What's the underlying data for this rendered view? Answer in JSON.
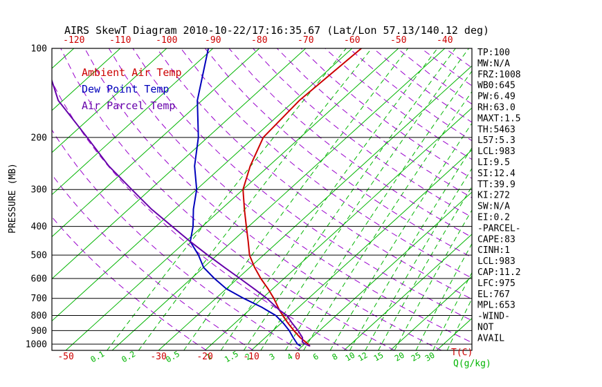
{
  "title": "AIRS SkewT Diagram 2010-10-22/17:16:35.67 (Lat/Lon 57.13/140.12 deg)",
  "colors": {
    "frame": "#000000",
    "green": "#00b400",
    "purple": "#9900cc",
    "temp_labels": "#cc0000",
    "pressure_labels": "#000000",
    "stats_text": "#000000",
    "cape_hatch": "#aa0000"
  },
  "axes": {
    "pressure_label": "PRESSURE (MB)",
    "pressure_ticks": [
      100,
      200,
      300,
      400,
      500,
      600,
      700,
      800,
      900,
      1000
    ],
    "top_temp_ticks": [
      -120,
      -110,
      -100,
      -90,
      -80,
      -70,
      -60,
      -50,
      -40
    ],
    "bottom_temp_ticks": [
      -50,
      -30,
      -20,
      -10,
      0
    ],
    "temp_unit": "T(C)",
    "mixing_ratio_unit": "Q(g/kg)",
    "mixing_ratio_ticks": [
      0.1,
      0.2,
      0.5,
      1,
      1.5,
      2,
      3,
      4,
      6,
      8,
      10,
      12,
      15,
      20,
      25,
      30
    ]
  },
  "stats_panel": {
    "lines": [
      "TP:100",
      "MW:N/A",
      "FRZ:1008",
      "WB0:645",
      "PW:6.49",
      "RH:63.0",
      "MAXT:1.5",
      "TH:5463",
      "L57:5.3",
      "LCL:983",
      "LI:9.5",
      "SI:12.4",
      "TT:39.9",
      "KI:272",
      "SW:N/A",
      "EI:0.2",
      "-PARCEL-",
      "CAPE:83",
      "CINH:1",
      "LCL:983",
      "CAP:11.2",
      "LFC:975",
      "EL:767",
      "MPL:653",
      "-WIND-",
      "NOT",
      "AVAIL"
    ]
  },
  "chart_data": {
    "type": "line",
    "title": "AIRS SkewT Diagram 2010-10-22/17:16:35.67 (Lat/Lon 57.13/140.12 deg)",
    "x_axis": "Temperature (C), skewed 45 deg",
    "y_axis": "Pressure (MB), log scale",
    "pressure_range": [
      100,
      1050
    ],
    "grid": {
      "isotherms_c": {
        "min": -160,
        "max": 40,
        "step": 10
      },
      "dry_adiabats_k": {
        "min": 250,
        "max": 470,
        "step": 10
      },
      "mixing_ratio_g_kg": [
        0.1,
        0.2,
        0.5,
        1,
        1.5,
        2,
        3,
        4,
        6,
        8,
        10,
        12,
        15,
        20,
        25,
        30
      ]
    },
    "series": [
      {
        "name": "Ambient Air Temp",
        "color": "#cc0000",
        "points": [
          [
            1013,
            1.5
          ],
          [
            1000,
            0.8
          ],
          [
            975,
            -0.8
          ],
          [
            950,
            -2.5
          ],
          [
            900,
            -5.5
          ],
          [
            850,
            -8.5
          ],
          [
            800,
            -11.5
          ],
          [
            767,
            -13.5
          ],
          [
            700,
            -17.5
          ],
          [
            650,
            -21
          ],
          [
            600,
            -25
          ],
          [
            550,
            -29
          ],
          [
            500,
            -33
          ],
          [
            450,
            -36.5
          ],
          [
            400,
            -40.5
          ],
          [
            350,
            -45
          ],
          [
            300,
            -50
          ],
          [
            250,
            -54
          ],
          [
            200,
            -58
          ],
          [
            150,
            -59
          ],
          [
            100,
            -58
          ]
        ]
      },
      {
        "name": "Dew Point Temp",
        "color": "#0000bb",
        "points": [
          [
            1013,
            -0.5
          ],
          [
            1000,
            -1.5
          ],
          [
            950,
            -4
          ],
          [
            900,
            -6.5
          ],
          [
            850,
            -9.5
          ],
          [
            800,
            -13
          ],
          [
            750,
            -18
          ],
          [
            700,
            -24
          ],
          [
            650,
            -30
          ],
          [
            600,
            -35
          ],
          [
            550,
            -40
          ],
          [
            500,
            -44
          ],
          [
            450,
            -49
          ],
          [
            400,
            -52
          ],
          [
            350,
            -56
          ],
          [
            300,
            -60
          ],
          [
            250,
            -66
          ],
          [
            200,
            -72
          ],
          [
            150,
            -81
          ],
          [
            100,
            -91
          ]
        ]
      },
      {
        "name": "Air Parcel Temp",
        "color": "#6600aa",
        "points": [
          [
            1013,
            1.5
          ],
          [
            1000,
            0.2
          ],
          [
            983,
            -1.0
          ],
          [
            975,
            -1.2
          ],
          [
            950,
            -2.0
          ],
          [
            900,
            -4.6
          ],
          [
            850,
            -7.6
          ],
          [
            800,
            -10.6
          ],
          [
            767,
            -13.5
          ],
          [
            700,
            -19
          ],
          [
            650,
            -24
          ],
          [
            600,
            -29.5
          ],
          [
            550,
            -35.5
          ],
          [
            500,
            -42
          ],
          [
            450,
            -49
          ],
          [
            400,
            -56.5
          ],
          [
            350,
            -65
          ],
          [
            300,
            -74
          ],
          [
            250,
            -84.5
          ],
          [
            200,
            -96
          ],
          [
            150,
            -111
          ],
          [
            100,
            -127
          ]
        ]
      }
    ],
    "cape_area": {
      "pressure_bottom": 975,
      "pressure_top": 767,
      "between": [
        "Air Parcel Temp",
        "Ambient Air Temp"
      ]
    }
  }
}
